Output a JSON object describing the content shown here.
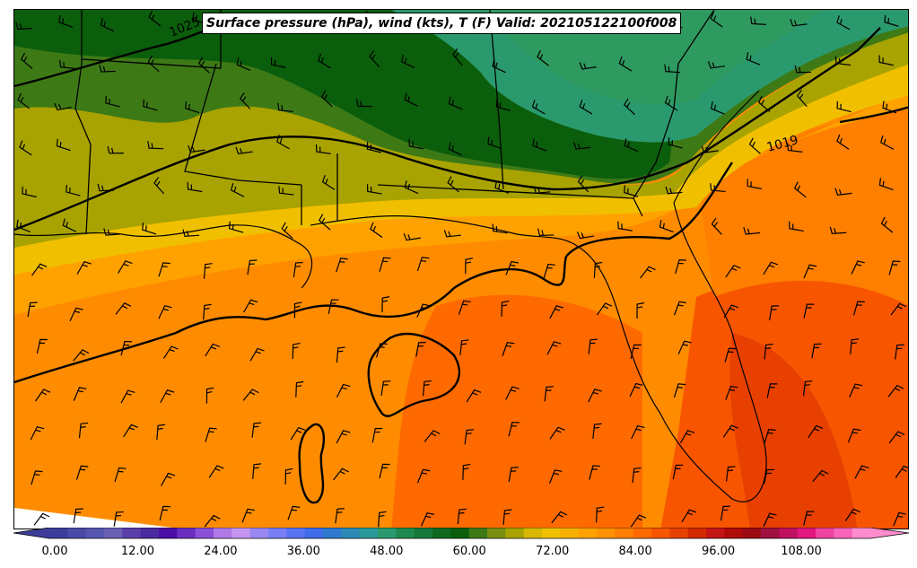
{
  "title": "Surface pressure (hPa), wind (kts), T (F) Valid: 202105122100f008",
  "isobar_labels": [
    {
      "text": "1025"
    },
    {
      "text": "1019"
    }
  ],
  "colorbar": {
    "ticks": [
      "0.00",
      "12.00",
      "24.00",
      "36.00",
      "48.00",
      "60.00",
      "72.00",
      "84.00",
      "96.00",
      "108.00"
    ],
    "colors": [
      "#3d3d99",
      "#4a4aa6",
      "#5656b0",
      "#6a5fb5",
      "#5a3fa8",
      "#4b2aa0",
      "#4b0fa8",
      "#6a2ec0",
      "#8a4fd6",
      "#b07ae6",
      "#c596f0",
      "#9a88f2",
      "#7a7ef5",
      "#5a73f2",
      "#3f6ce8",
      "#2f7ad0",
      "#2a8ab5",
      "#2b9a9a",
      "#2a9a6e",
      "#1f8a4f",
      "#16793a",
      "#0f6a1f",
      "#0b5e0b",
      "#3d7a16",
      "#7a8f10",
      "#a8a300",
      "#d8b800",
      "#f0c000",
      "#f8b000",
      "#ffa200",
      "#ff9200",
      "#ff7f00",
      "#ff6a00",
      "#f85500",
      "#e84000",
      "#d42a00",
      "#c41515",
      "#b00a0a",
      "#9c0a14",
      "#a01040",
      "#c01060",
      "#e01880",
      "#ee44a0",
      "#f864b8",
      "#ff8ccc"
    ]
  }
}
